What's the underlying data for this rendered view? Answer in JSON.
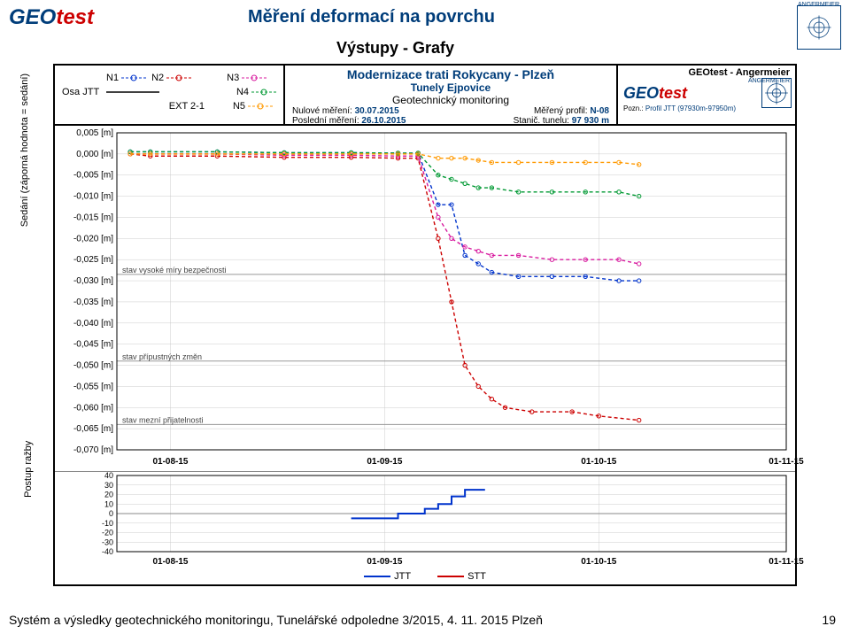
{
  "header": {
    "logo_text_a": "GEO",
    "logo_text_b": "test",
    "title": "Měření deformací na povrchu",
    "subtitle": "Výstupy - Grafy",
    "right_logo_label": "ANGERMEIER"
  },
  "report_header": {
    "left": {
      "axis_label": "Osa JTT",
      "legend": [
        {
          "label": "N1",
          "color": "#0033cc",
          "style": "dash-circle"
        },
        {
          "label": "N2",
          "color": "#cc0000",
          "style": "dash-circle"
        },
        {
          "label": "N3",
          "color": "#d81b9f",
          "style": "dash-circle"
        },
        {
          "label": "N4",
          "color": "#009933",
          "style": "dash-circle"
        },
        {
          "label": "EXT 2-1",
          "color": "#000000",
          "style": "none"
        },
        {
          "label": "N5",
          "color": "#ff9900",
          "style": "dash-circle"
        }
      ]
    },
    "center": {
      "line1": "Modernizace trati Rokycany - Plzeň",
      "line2": "Tunely Ejpovice",
      "line3": "Geotechnický monitoring",
      "row1_l": "Nulové měření:",
      "row1_v": "30.07.2015",
      "row1_r_l": "Měřený profil:",
      "row1_r_v": "N-08",
      "row2_l": "Poslední měření:",
      "row2_v": "26.10.2015",
      "row2_r_l": "Stanič. tunelu:",
      "row2_r_v": "97 930 m"
    },
    "right": {
      "title": "GEOtest - Angermeier",
      "sublabel": "ANGERMEIER",
      "logo_a": "GEO",
      "logo_b": "test",
      "note_l": "Pozn.:",
      "note_v": "Profil JTT (97930m-97950m)"
    }
  },
  "main_chart": {
    "ylabel": "Sedání (záporná hodnota = sedání)",
    "ylim": [
      -0.07,
      0.005
    ],
    "ytick_step": 0.005,
    "yticks": [
      "0,005 [m]",
      "0,000 [m]",
      "-0,005 [m]",
      "-0,010 [m]",
      "-0,015 [m]",
      "-0,020 [m]",
      "-0,025 [m]",
      "-0,030 [m]",
      "-0,035 [m]",
      "-0,040 [m]",
      "-0,045 [m]",
      "-0,050 [m]",
      "-0,055 [m]",
      "-0,060 [m]",
      "-0,065 [m]",
      "-0,070 [m]"
    ],
    "xticks": [
      "01-08-15",
      "01-09-15",
      "01-10-15",
      "01-11-15"
    ],
    "xlim": [
      0,
      100
    ],
    "xtick_pos": [
      8,
      40,
      72,
      100
    ],
    "background": "#ffffff",
    "grid_color": "#cccccc",
    "annotations": [
      {
        "text": "stav vysoké míry bezpečnosti",
        "y": -0.0285,
        "color": "#444"
      },
      {
        "text": "stav přípustných změn",
        "y": -0.049,
        "color": "#444"
      },
      {
        "text": "stav mezní přijatelnosti",
        "y": -0.064,
        "color": "#444"
      }
    ],
    "hline_color": "#999999",
    "series": [
      {
        "name": "N1",
        "color": "#0033cc",
        "dash": true,
        "points": [
          [
            2,
            0.0005
          ],
          [
            5,
            0.0005
          ],
          [
            15,
            0.0005
          ],
          [
            25,
            0.0003
          ],
          [
            35,
            0.0003
          ],
          [
            42,
            0.0002
          ],
          [
            45,
            0.0002
          ],
          [
            48,
            -0.012
          ],
          [
            50,
            -0.012
          ],
          [
            52,
            -0.024
          ],
          [
            54,
            -0.026
          ],
          [
            56,
            -0.028
          ],
          [
            60,
            -0.029
          ],
          [
            65,
            -0.029
          ],
          [
            70,
            -0.029
          ],
          [
            75,
            -0.03
          ],
          [
            78,
            -0.03
          ]
        ]
      },
      {
        "name": "N2",
        "color": "#cc0000",
        "dash": true,
        "points": [
          [
            2,
            0.0
          ],
          [
            5,
            -0.0005
          ],
          [
            15,
            -0.0005
          ],
          [
            25,
            -0.0008
          ],
          [
            35,
            -0.0008
          ],
          [
            42,
            -0.001
          ],
          [
            45,
            -0.001
          ],
          [
            48,
            -0.02
          ],
          [
            50,
            -0.035
          ],
          [
            52,
            -0.05
          ],
          [
            54,
            -0.055
          ],
          [
            56,
            -0.058
          ],
          [
            58,
            -0.06
          ],
          [
            62,
            -0.061
          ],
          [
            68,
            -0.061
          ],
          [
            72,
            -0.062
          ],
          [
            78,
            -0.063
          ]
        ]
      },
      {
        "name": "N3",
        "color": "#d81b9f",
        "dash": true,
        "points": [
          [
            2,
            0.0
          ],
          [
            5,
            0.0
          ],
          [
            15,
            0.0
          ],
          [
            25,
            -0.0003
          ],
          [
            35,
            -0.0003
          ],
          [
            42,
            -0.0005
          ],
          [
            45,
            -0.0005
          ],
          [
            48,
            -0.015
          ],
          [
            50,
            -0.02
          ],
          [
            52,
            -0.022
          ],
          [
            54,
            -0.023
          ],
          [
            56,
            -0.024
          ],
          [
            60,
            -0.024
          ],
          [
            65,
            -0.025
          ],
          [
            70,
            -0.025
          ],
          [
            75,
            -0.025
          ],
          [
            78,
            -0.026
          ]
        ]
      },
      {
        "name": "N4",
        "color": "#009933",
        "dash": true,
        "points": [
          [
            2,
            0.0005
          ],
          [
            5,
            0.0005
          ],
          [
            15,
            0.0005
          ],
          [
            25,
            0.0003
          ],
          [
            35,
            0.0003
          ],
          [
            42,
            0.0002
          ],
          [
            45,
            0.0002
          ],
          [
            48,
            -0.005
          ],
          [
            50,
            -0.006
          ],
          [
            52,
            -0.007
          ],
          [
            54,
            -0.008
          ],
          [
            56,
            -0.008
          ],
          [
            60,
            -0.009
          ],
          [
            65,
            -0.009
          ],
          [
            70,
            -0.009
          ],
          [
            75,
            -0.009
          ],
          [
            78,
            -0.01
          ]
        ]
      },
      {
        "name": "N5",
        "color": "#ff9900",
        "dash": true,
        "points": [
          [
            2,
            0.0
          ],
          [
            5,
            0.0
          ],
          [
            15,
            0.0
          ],
          [
            25,
            0.0
          ],
          [
            35,
            0.0
          ],
          [
            42,
            0.0
          ],
          [
            45,
            0.0
          ],
          [
            48,
            -0.001
          ],
          [
            50,
            -0.001
          ],
          [
            52,
            -0.001
          ],
          [
            54,
            -0.0015
          ],
          [
            56,
            -0.002
          ],
          [
            60,
            -0.002
          ],
          [
            65,
            -0.002
          ],
          [
            70,
            -0.002
          ],
          [
            75,
            -0.002
          ],
          [
            78,
            -0.0025
          ]
        ]
      }
    ]
  },
  "bottom_chart": {
    "ylabel": "Postup ražby",
    "ylim": [
      -40,
      40
    ],
    "yticks": [
      "40",
      "30",
      "20",
      "10",
      "0",
      "-10",
      "-20",
      "-30",
      "-40"
    ],
    "xticks": [
      "01-08-15",
      "01-09-15",
      "01-10-15",
      "01-11-15"
    ],
    "xtick_pos": [
      8,
      40,
      72,
      100
    ],
    "series": [
      {
        "name": "JTT",
        "color": "#0033cc",
        "points": [
          [
            35,
            -5
          ],
          [
            40,
            -5
          ],
          [
            42,
            0
          ],
          [
            45,
            0
          ],
          [
            46,
            5
          ],
          [
            47,
            5
          ],
          [
            48,
            10
          ],
          [
            49,
            10
          ],
          [
            50,
            18
          ],
          [
            51,
            18
          ],
          [
            52,
            25
          ],
          [
            55,
            25
          ]
        ]
      }
    ],
    "legend": [
      {
        "label": "JTT",
        "color": "#0033cc"
      },
      {
        "label": "STT",
        "color": "#cc0000"
      }
    ]
  },
  "footer": {
    "text": "Systém a výsledky geotechnického monitoringu, Tunelářské odpoledne 3/2015, 4. 11. 2015 Plzeň",
    "page": "19"
  },
  "colors": {
    "brand_blue": "#003d7a",
    "brand_red": "#c00000"
  }
}
